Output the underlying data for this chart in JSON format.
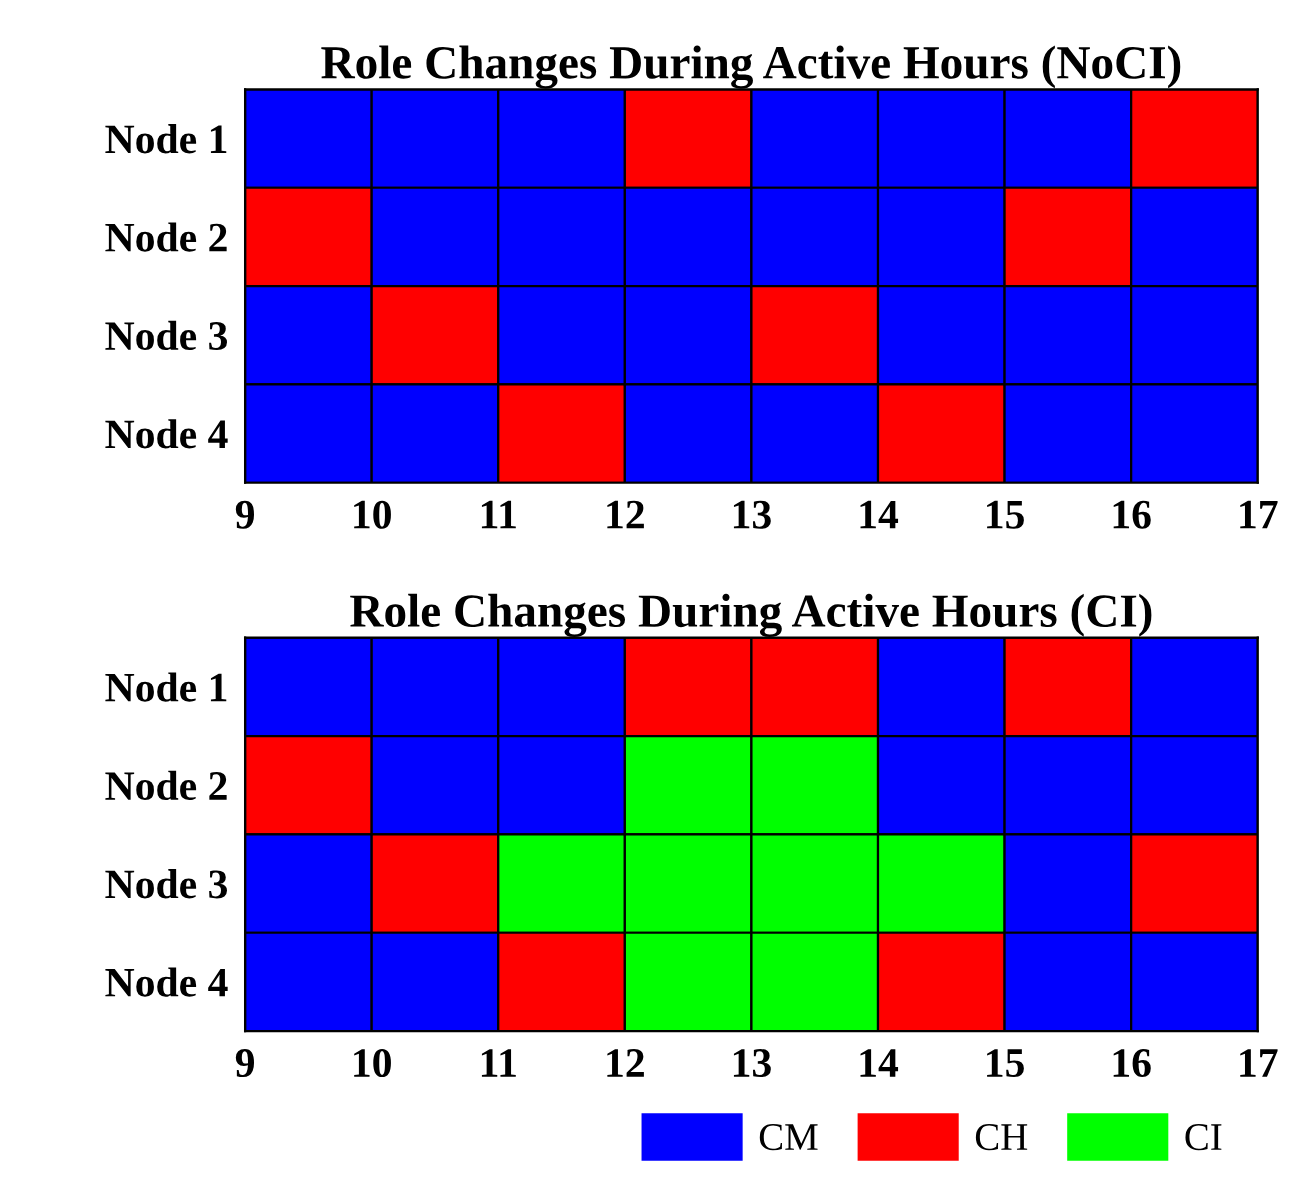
{
  "chart_data": [
    {
      "type": "bar",
      "orientation": "horizontal",
      "title": "Role Changes During Active Hours (NoCI)",
      "categories": [
        "Node 1",
        "Node 2",
        "Node 3",
        "Node 4"
      ],
      "xlim": [
        9,
        17
      ],
      "xticks": [
        9,
        10,
        11,
        12,
        13,
        14,
        15,
        16,
        17
      ],
      "series": [
        {
          "base": [
            9,
            9,
            9,
            9
          ],
          "values": [
            1,
            1,
            1,
            1
          ],
          "colors": [
            "#0000ff",
            "#ff0000",
            "#0000ff",
            "#0000ff"
          ]
        },
        {
          "base": [
            10,
            10,
            10,
            10
          ],
          "values": [
            1,
            1,
            1,
            1
          ],
          "colors": [
            "#0000ff",
            "#0000ff",
            "#ff0000",
            "#0000ff"
          ]
        },
        {
          "base": [
            11,
            11,
            11,
            11
          ],
          "values": [
            1,
            1,
            1,
            1
          ],
          "colors": [
            "#0000ff",
            "#0000ff",
            "#0000ff",
            "#ff0000"
          ]
        },
        {
          "base": [
            12,
            12,
            12,
            12
          ],
          "values": [
            1,
            1,
            1,
            1
          ],
          "colors": [
            "#ff0000",
            "#0000ff",
            "#0000ff",
            "#0000ff"
          ]
        },
        {
          "base": [
            13,
            13,
            13,
            13
          ],
          "values": [
            1,
            1,
            1,
            1
          ],
          "colors": [
            "#0000ff",
            "#0000ff",
            "#ff0000",
            "#0000ff"
          ]
        },
        {
          "base": [
            14,
            14,
            14,
            14
          ],
          "values": [
            1,
            1,
            1,
            1
          ],
          "colors": [
            "#0000ff",
            "#0000ff",
            "#0000ff",
            "#ff0000"
          ]
        },
        {
          "base": [
            15,
            15,
            15,
            15
          ],
          "values": [
            1,
            1,
            1,
            1
          ],
          "colors": [
            "#0000ff",
            "#ff0000",
            "#0000ff",
            "#0000ff"
          ]
        },
        {
          "base": [
            16,
            16,
            16,
            16
          ],
          "values": [
            1,
            1,
            1,
            1
          ],
          "colors": [
            "#ff0000",
            "#0000ff",
            "#0000ff",
            "#0000ff"
          ]
        }
      ]
    },
    {
      "type": "bar",
      "orientation": "horizontal",
      "title": "Role Changes During Active Hours (CI)",
      "categories": [
        "Node 1",
        "Node 2",
        "Node 3",
        "Node 4"
      ],
      "xlim": [
        9,
        17
      ],
      "xticks": [
        9,
        10,
        11,
        12,
        13,
        14,
        15,
        16,
        17
      ],
      "series": [
        {
          "base": [
            9,
            9,
            9,
            9
          ],
          "values": [
            1,
            1,
            1,
            1
          ],
          "colors": [
            "#0000ff",
            "#ff0000",
            "#0000ff",
            "#0000ff"
          ]
        },
        {
          "base": [
            10,
            10,
            10,
            10
          ],
          "values": [
            1,
            1,
            1,
            1
          ],
          "colors": [
            "#0000ff",
            "#0000ff",
            "#ff0000",
            "#0000ff"
          ]
        },
        {
          "base": [
            11,
            11,
            11,
            11
          ],
          "values": [
            1,
            1,
            1,
            1
          ],
          "colors": [
            "#0000ff",
            "#0000ff",
            "#00ff00",
            "#ff0000"
          ]
        },
        {
          "base": [
            12,
            12,
            12,
            12
          ],
          "values": [
            1,
            1,
            1,
            1
          ],
          "colors": [
            "#ff0000",
            "#00ff00",
            "#00ff00",
            "#00ff00"
          ]
        },
        {
          "base": [
            13,
            13,
            13,
            13
          ],
          "values": [
            1,
            1,
            1,
            1
          ],
          "colors": [
            "#ff0000",
            "#00ff00",
            "#00ff00",
            "#00ff00"
          ]
        },
        {
          "base": [
            14,
            14,
            14,
            14
          ],
          "values": [
            1,
            1,
            1,
            1
          ],
          "colors": [
            "#0000ff",
            "#0000ff",
            "#00ff00",
            "#ff0000"
          ]
        },
        {
          "base": [
            15,
            15,
            15,
            15
          ],
          "values": [
            1,
            1,
            1,
            1
          ],
          "colors": [
            "#ff0000",
            "#0000ff",
            "#0000ff",
            "#0000ff"
          ]
        },
        {
          "base": [
            16,
            16,
            16,
            16
          ],
          "values": [
            1,
            1,
            1,
            1
          ],
          "colors": [
            "#0000ff",
            "#0000ff",
            "#ff0000",
            "#0000ff"
          ]
        },
        {
          "name": "CM",
          "color": "#0000ff",
          "values": [
            null,
            null,
            null,
            null
          ]
        },
        {
          "name": "CH",
          "color": "#ff0000",
          "values": [
            null,
            null,
            null,
            null
          ]
        },
        {
          "name": "CI",
          "color": "#00ff00",
          "values": [
            null,
            null,
            null,
            null
          ]
        }
      ],
      "legend": "bottom right"
    }
  ]
}
